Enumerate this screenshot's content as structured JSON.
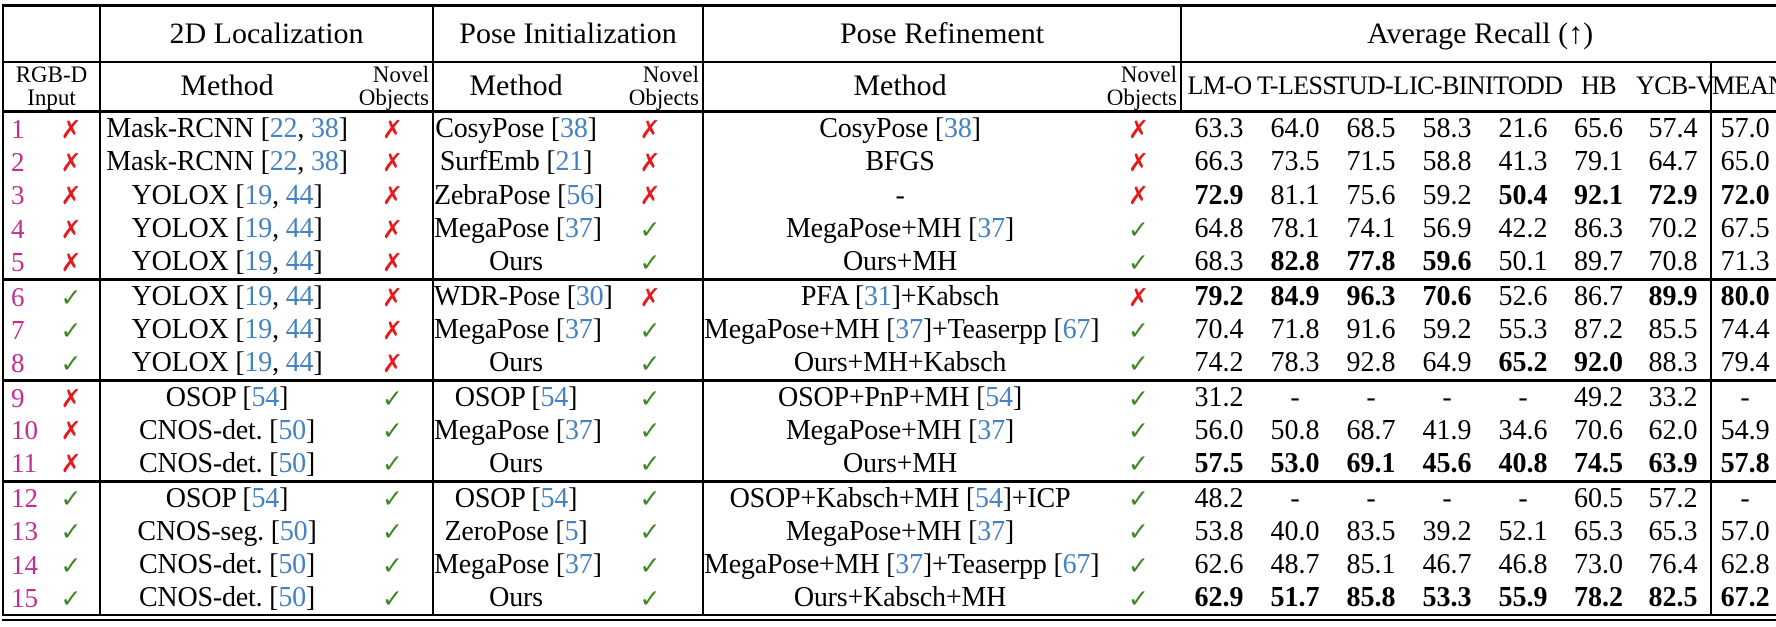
{
  "colors": {
    "row_number": "#c52c92",
    "cross": "#e8191c",
    "check": "#3f8626",
    "citation": "#4682c3",
    "rule": "#000000"
  },
  "marks": {
    "yes": "✓",
    "no": "✗"
  },
  "title_row": {
    "groups": [
      {
        "label": ""
      },
      {
        "label": "2D Localization"
      },
      {
        "label": "Pose Initialization"
      },
      {
        "label": "Pose Refinement"
      },
      {
        "label": "Average Recall (↑)"
      }
    ]
  },
  "subheader": {
    "rgbd_input": "RGB-D\nInput",
    "method": "Method",
    "novel_objects": "Novel\nObjects",
    "metrics": [
      "LM-O",
      "T-LESS",
      "TUD-L",
      "IC-BIN",
      "ITODD",
      "HB",
      "YCB-V",
      "MEAN"
    ]
  },
  "rows": [
    {
      "num": "1",
      "rgbd": "no",
      "loc_method": [
        "Mask-RCNN [",
        [
          "22"
        ],
        ", ",
        [
          "38"
        ],
        "]"
      ],
      "loc_novel": "no",
      "init_method": [
        "CosyPose [",
        [
          "38"
        ],
        "]"
      ],
      "init_novel": "no",
      "ref_method": [
        "CosyPose [",
        [
          "38"
        ],
        "]"
      ],
      "ref_novel": "no",
      "scores": [
        "63.3",
        "64.0",
        "68.5",
        "58.3",
        "21.6",
        "65.6",
        "57.4",
        "57.0"
      ],
      "bold": [
        0,
        0,
        0,
        0,
        0,
        0,
        0,
        0
      ],
      "group_start": false
    },
    {
      "num": "2",
      "rgbd": "no",
      "loc_method": [
        "Mask-RCNN [",
        [
          "22"
        ],
        ", ",
        [
          "38"
        ],
        "]"
      ],
      "loc_novel": "no",
      "init_method": [
        "SurfEmb [",
        [
          "21"
        ],
        "]"
      ],
      "init_novel": "no",
      "ref_method": [
        "BFGS"
      ],
      "ref_novel": "no",
      "scores": [
        "66.3",
        "73.5",
        "71.5",
        "58.8",
        "41.3",
        "79.1",
        "64.7",
        "65.0"
      ],
      "bold": [
        0,
        0,
        0,
        0,
        0,
        0,
        0,
        0
      ],
      "group_start": false
    },
    {
      "num": "3",
      "rgbd": "no",
      "loc_method": [
        "YOLOX [",
        [
          "19"
        ],
        ", ",
        [
          "44"
        ],
        "]"
      ],
      "loc_novel": "no",
      "init_method": [
        "ZebraPose [",
        [
          "56"
        ],
        "]"
      ],
      "init_novel": "no",
      "ref_method": [
        "-"
      ],
      "ref_novel": "no",
      "scores": [
        "72.9",
        "81.1",
        "75.6",
        "59.2",
        "50.4",
        "92.1",
        "72.9",
        "72.0"
      ],
      "bold": [
        1,
        0,
        0,
        0,
        1,
        1,
        1,
        1
      ],
      "group_start": false
    },
    {
      "num": "4",
      "rgbd": "no",
      "loc_method": [
        "YOLOX [",
        [
          "19"
        ],
        ", ",
        [
          "44"
        ],
        "]"
      ],
      "loc_novel": "no",
      "init_method": [
        "MegaPose [",
        [
          "37"
        ],
        "]"
      ],
      "init_novel": "yes",
      "ref_method": [
        "MegaPose+MH [",
        [
          "37"
        ],
        "]"
      ],
      "ref_novel": "yes",
      "scores": [
        "64.8",
        "78.1",
        "74.1",
        "56.9",
        "42.2",
        "86.3",
        "70.2",
        "67.5"
      ],
      "bold": [
        0,
        0,
        0,
        0,
        0,
        0,
        0,
        0
      ],
      "group_start": false
    },
    {
      "num": "5",
      "rgbd": "no",
      "loc_method": [
        "YOLOX [",
        [
          "19"
        ],
        ", ",
        [
          "44"
        ],
        "]"
      ],
      "loc_novel": "no",
      "init_method": [
        "Ours"
      ],
      "init_novel": "yes",
      "ref_method": [
        "Ours+MH"
      ],
      "ref_novel": "yes",
      "scores": [
        "68.3",
        "82.8",
        "77.8",
        "59.6",
        "50.1",
        "89.7",
        "70.8",
        "71.3"
      ],
      "bold": [
        0,
        1,
        1,
        1,
        0,
        0,
        0,
        0
      ],
      "group_start": false
    },
    {
      "num": "6",
      "rgbd": "yes",
      "loc_method": [
        "YOLOX [",
        [
          "19"
        ],
        ", ",
        [
          "44"
        ],
        "]"
      ],
      "loc_novel": "no",
      "init_method": [
        "WDR-Pose [",
        [
          "30"
        ],
        "]"
      ],
      "init_novel": "no",
      "ref_method": [
        "PFA [",
        [
          "31"
        ],
        "]+Kabsch"
      ],
      "ref_novel": "no",
      "scores": [
        "79.2",
        "84.9",
        "96.3",
        "70.6",
        "52.6",
        "86.7",
        "89.9",
        "80.0"
      ],
      "bold": [
        1,
        1,
        1,
        1,
        0,
        0,
        1,
        1
      ],
      "group_start": true
    },
    {
      "num": "7",
      "rgbd": "yes",
      "loc_method": [
        "YOLOX [",
        [
          "19"
        ],
        ", ",
        [
          "44"
        ],
        "]"
      ],
      "loc_novel": "no",
      "init_method": [
        "MegaPose [",
        [
          "37"
        ],
        "]"
      ],
      "init_novel": "yes",
      "ref_method": [
        "MegaPose+MH [",
        [
          "37"
        ],
        "]+Teaserpp [",
        [
          "67"
        ],
        "]"
      ],
      "ref_novel": "yes",
      "scores": [
        "70.4",
        "71.8",
        "91.6",
        "59.2",
        "55.3",
        "87.2",
        "85.5",
        "74.4"
      ],
      "bold": [
        0,
        0,
        0,
        0,
        0,
        0,
        0,
        0
      ],
      "group_start": false
    },
    {
      "num": "8",
      "rgbd": "yes",
      "loc_method": [
        "YOLOX [",
        [
          "19"
        ],
        ", ",
        [
          "44"
        ],
        "]"
      ],
      "loc_novel": "no",
      "init_method": [
        "Ours"
      ],
      "init_novel": "yes",
      "ref_method": [
        "Ours+MH+Kabsch"
      ],
      "ref_novel": "yes",
      "scores": [
        "74.2",
        "78.3",
        "92.8",
        "64.9",
        "65.2",
        "92.0",
        "88.3",
        "79.4"
      ],
      "bold": [
        0,
        0,
        0,
        0,
        1,
        1,
        0,
        0
      ],
      "group_start": false
    },
    {
      "num": "9",
      "rgbd": "no",
      "loc_method": [
        "OSOP [",
        [
          "54"
        ],
        "]"
      ],
      "loc_novel": "yes",
      "init_method": [
        "OSOP [",
        [
          "54"
        ],
        "]"
      ],
      "init_novel": "yes",
      "ref_method": [
        "OSOP+PnP+MH [",
        [
          "54"
        ],
        "]"
      ],
      "ref_novel": "yes",
      "scores": [
        "31.2",
        "-",
        "-",
        "-",
        "-",
        "49.2",
        "33.2",
        "-"
      ],
      "bold": [
        0,
        0,
        0,
        0,
        0,
        0,
        0,
        0
      ],
      "group_start": true
    },
    {
      "num": "10",
      "rgbd": "no",
      "loc_method": [
        "CNOS-det. [",
        [
          "50"
        ],
        "]"
      ],
      "loc_novel": "yes",
      "init_method": [
        "MegaPose [",
        [
          "37"
        ],
        "]"
      ],
      "init_novel": "yes",
      "ref_method": [
        "MegaPose+MH [",
        [
          "37"
        ],
        "]"
      ],
      "ref_novel": "yes",
      "scores": [
        "56.0",
        "50.8",
        "68.7",
        "41.9",
        "34.6",
        "70.6",
        "62.0",
        "54.9"
      ],
      "bold": [
        0,
        0,
        0,
        0,
        0,
        0,
        0,
        0
      ],
      "group_start": false
    },
    {
      "num": "11",
      "rgbd": "no",
      "loc_method": [
        "CNOS-det. [",
        [
          "50"
        ],
        "]"
      ],
      "loc_novel": "yes",
      "init_method": [
        "Ours"
      ],
      "init_novel": "yes",
      "ref_method": [
        "Ours+MH"
      ],
      "ref_novel": "yes",
      "scores": [
        "57.5",
        "53.0",
        "69.1",
        "45.6",
        "40.8",
        "74.5",
        "63.9",
        "57.8"
      ],
      "bold": [
        1,
        1,
        1,
        1,
        1,
        1,
        1,
        1
      ],
      "group_start": false
    },
    {
      "num": "12",
      "rgbd": "yes",
      "loc_method": [
        "OSOP [",
        [
          "54"
        ],
        "]"
      ],
      "loc_novel": "yes",
      "init_method": [
        "OSOP [",
        [
          "54"
        ],
        "]"
      ],
      "init_novel": "yes",
      "ref_method": [
        "OSOP+Kabsch+MH [",
        [
          "54"
        ],
        "]+ICP"
      ],
      "ref_novel": "yes",
      "scores": [
        "48.2",
        "-",
        "-",
        "-",
        "-",
        "60.5",
        "57.2",
        "-"
      ],
      "bold": [
        0,
        0,
        0,
        0,
        0,
        0,
        0,
        0
      ],
      "group_start": true
    },
    {
      "num": "13",
      "rgbd": "yes",
      "loc_method": [
        "CNOS-seg. [",
        [
          "50"
        ],
        "]"
      ],
      "loc_novel": "yes",
      "init_method": [
        "ZeroPose [",
        [
          "5"
        ],
        "]"
      ],
      "init_novel": "yes",
      "ref_method": [
        "MegaPose+MH [",
        [
          "37"
        ],
        "]"
      ],
      "ref_novel": "yes",
      "scores": [
        "53.8",
        "40.0",
        "83.5",
        "39.2",
        "52.1",
        "65.3",
        "65.3",
        "57.0"
      ],
      "bold": [
        0,
        0,
        0,
        0,
        0,
        0,
        0,
        0
      ],
      "group_start": false
    },
    {
      "num": "14",
      "rgbd": "yes",
      "loc_method": [
        "CNOS-det. [",
        [
          "50"
        ],
        "]"
      ],
      "loc_novel": "yes",
      "init_method": [
        "MegaPose [",
        [
          "37"
        ],
        "]"
      ],
      "init_novel": "yes",
      "ref_method": [
        "MegaPose+MH [",
        [
          "37"
        ],
        "]+Teaserpp [",
        [
          "67"
        ],
        "]"
      ],
      "ref_novel": "yes",
      "scores": [
        "62.6",
        "48.7",
        "85.1",
        "46.7",
        "46.8",
        "73.0",
        "76.4",
        "62.8"
      ],
      "bold": [
        0,
        0,
        0,
        0,
        0,
        0,
        0,
        0
      ],
      "group_start": false
    },
    {
      "num": "15",
      "rgbd": "yes",
      "loc_method": [
        "CNOS-det. [",
        [
          "50"
        ],
        "]"
      ],
      "loc_novel": "yes",
      "init_method": [
        "Ours"
      ],
      "init_novel": "yes",
      "ref_method": [
        "Ours+Kabsch+MH"
      ],
      "ref_novel": "yes",
      "scores": [
        "62.9",
        "51.7",
        "85.8",
        "53.3",
        "55.9",
        "78.2",
        "82.5",
        "67.2"
      ],
      "bold": [
        1,
        1,
        1,
        1,
        1,
        1,
        1,
        1
      ],
      "group_start": false
    }
  ]
}
